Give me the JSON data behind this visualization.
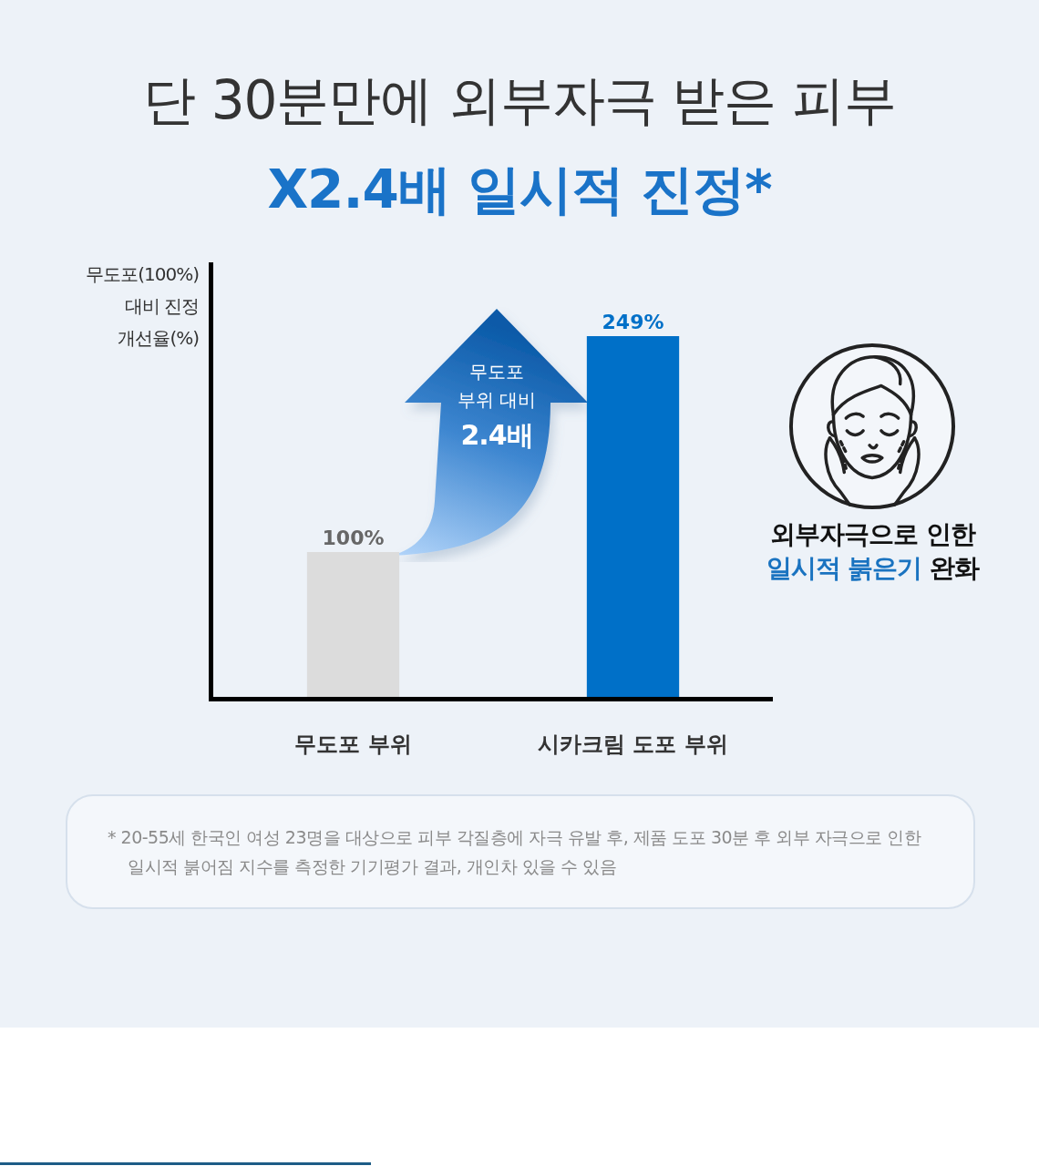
{
  "chart_data": {
    "type": "bar",
    "title": "단 30분만에 외부자극 받은 피부",
    "subtitle": "X2.4배 일시적 진정*",
    "ylabel": "무도포(100%)\n대비 진정\n개선율(%)",
    "categories": [
      "무도포 부위",
      "시카크림 도포 부위"
    ],
    "values": [
      100,
      249
    ],
    "colors": [
      "#dcdcdc",
      "#0070c8"
    ],
    "value_labels": [
      "100%",
      "249%"
    ],
    "ylim": [
      0,
      300
    ],
    "tick_labels": "x",
    "annotations": [
      "무도포\n부위 대비\n2.4배",
      "외부자극으로 인한",
      "일시적 붉은기",
      "완화",
      "* 20-55세 한국인 여성 23명을 대상으로 피부 각질층에 자극 유발 후, 제품 도포 30분 후 외부 자극으로 인한 일시적 붉어짐 지수를 측정한 기기평가 결과, 개인차 있을 수 있음"
    ]
  }
}
